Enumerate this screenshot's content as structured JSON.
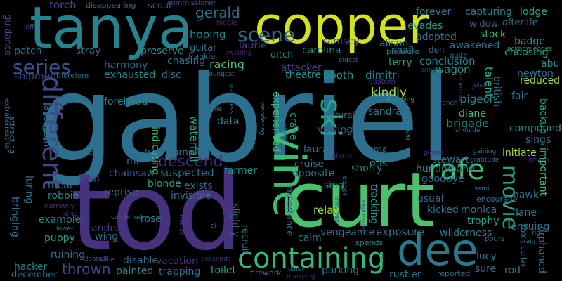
{
  "word_cloud": {
    "words": [
      {
        "text": "gabriel",
        "color": "#2d6f8e",
        "vertical": false
      },
      {
        "text": "tod",
        "color": "#46327e",
        "vertical": false
      },
      {
        "text": "curt",
        "color": "#4ac16d",
        "vertical": false
      },
      {
        "text": "tanya",
        "color": "#26828e",
        "vertical": false
      },
      {
        "text": "copper",
        "color": "#d2e21b",
        "vertical": false
      },
      {
        "text": "dee",
        "color": "#2a788e",
        "vertical": false
      },
      {
        "text": "vine",
        "color": "#3bbb75",
        "vertical": true
      },
      {
        "text": "containing",
        "color": "#35b779",
        "vertical": false
      },
      {
        "text": "rafe",
        "color": "#3dbc74",
        "vertical": false
      },
      {
        "text": "different",
        "color": "#3e4a89",
        "vertical": true
      },
      {
        "text": "ski",
        "color": "#22a884",
        "vertical": true
      },
      {
        "text": "series",
        "color": "#3b528b",
        "vertical": false
      },
      {
        "text": "scene",
        "color": "#31688e",
        "vertical": false
      },
      {
        "text": "movie",
        "color": "#1fa187",
        "vertical": true
      },
      {
        "text": "descend",
        "color": "#482878",
        "vertical": false
      },
      {
        "text": "thrown",
        "color": "#414487",
        "vertical": false
      },
      {
        "text": "gerald",
        "color": "#2c728e",
        "vertical": false
      },
      {
        "text": "brigade",
        "color": "#218f8d",
        "vertical": false
      },
      {
        "text": "torch",
        "color": "#3e4c8a",
        "vertical": false
      },
      {
        "text": "disappearing",
        "color": "#31688e",
        "vertical": false
      },
      {
        "text": "scout",
        "color": "#3b528b",
        "vertical": false
      },
      {
        "text": "commissioner",
        "color": "#3b528b",
        "vertical": false
      },
      {
        "text": "forever",
        "color": "#2c728e",
        "vertical": false
      },
      {
        "text": "capturing",
        "color": "#25848e",
        "vertical": false
      },
      {
        "text": "lodge",
        "color": "#21a685",
        "vertical": false
      },
      {
        "text": "guidance",
        "color": "#3e4a89",
        "vertical": true
      },
      {
        "text": "jeff",
        "color": "#3b528b",
        "vertical": false
      },
      {
        "text": "hoping",
        "color": "#25858e",
        "vertical": false
      },
      {
        "text": "nicole",
        "color": "#482878",
        "vertical": false
      },
      {
        "text": "evades",
        "color": "#1f9a8a",
        "vertical": false
      },
      {
        "text": "widow",
        "color": "#355f8d",
        "vertical": false
      },
      {
        "text": "afterlife",
        "color": "#2a788e",
        "vertical": false
      },
      {
        "text": "adopted",
        "color": "#2c728e",
        "vertical": false
      },
      {
        "text": "stock",
        "color": "#3aba76",
        "vertical": false
      },
      {
        "text": "acknowledges",
        "color": "#1f9e89",
        "vertical": false
      },
      {
        "text": "patch",
        "color": "#2d718e",
        "vertical": false
      },
      {
        "text": "stray",
        "color": "#2c728e",
        "vertical": false
      },
      {
        "text": "preserve",
        "color": "#1f968b",
        "vertical": false
      },
      {
        "text": "guitar",
        "color": "#2b758e",
        "vertical": false
      },
      {
        "text": "laurie",
        "color": "#443983",
        "vertical": false
      },
      {
        "text": "ramsey",
        "color": "#3b528b",
        "vertical": false
      },
      {
        "text": "pleasure",
        "color": "#2a788e",
        "vertical": false
      },
      {
        "text": "awakened",
        "color": "#2a788e",
        "vertical": false
      },
      {
        "text": "badge",
        "color": "#21918c",
        "vertical": false
      },
      {
        "text": "choosing",
        "color": "#21a685",
        "vertical": false
      },
      {
        "text": "harmony",
        "color": "#2e6e8e",
        "vertical": false
      },
      {
        "text": "chasing",
        "color": "#2b758e",
        "vertical": false
      },
      {
        "text": "frankie",
        "color": "#2c728e",
        "vertical": false
      },
      {
        "text": "awaiting",
        "color": "#482878",
        "vertical": false
      },
      {
        "text": "carolina",
        "color": "#26828e",
        "vertical": false
      },
      {
        "text": "alison",
        "color": "#29798e",
        "vertical": false
      },
      {
        "text": "den",
        "color": "#31688e",
        "vertical": false
      },
      {
        "text": "quite",
        "color": "#2b758e",
        "vertical": false
      },
      {
        "text": "extraterrestrial",
        "color": "#2e6e8e",
        "vertical": true
      },
      {
        "text": "shipment",
        "color": "#404688",
        "vertical": false
      },
      {
        "text": "exhausted",
        "color": "#25858e",
        "vertical": false
      },
      {
        "text": "disc",
        "color": "#2c728e",
        "vertical": false
      },
      {
        "text": "racing",
        "color": "#48c16e",
        "vertical": false
      },
      {
        "text": "youngest",
        "color": "#2a788e",
        "vertical": false
      },
      {
        "text": "ditch",
        "color": "#25848e",
        "vertical": false
      },
      {
        "text": "attacker",
        "color": "#453882",
        "vertical": false
      },
      {
        "text": "eldest",
        "color": "#31688e",
        "vertical": false
      },
      {
        "text": "shaft",
        "color": "#2c728e",
        "vertical": false
      },
      {
        "text": "terry",
        "color": "#1fa088",
        "vertical": false
      },
      {
        "text": "conclusion",
        "color": "#25848e",
        "vertical": false
      },
      {
        "text": "bring",
        "color": "#472d7b",
        "vertical": false
      },
      {
        "text": "wagon",
        "color": "#1f968b",
        "vertical": false
      },
      {
        "text": "talent",
        "color": "#29af7f",
        "vertical": true
      },
      {
        "text": "abu",
        "color": "#21918c",
        "vertical": false
      },
      {
        "text": "newton",
        "color": "#2c728e",
        "vertical": false
      },
      {
        "text": "reduced",
        "color": "#a5db36",
        "vertical": false
      },
      {
        "text": "therefore",
        "color": "#2c728e",
        "vertical": false
      },
      {
        "text": "theatre",
        "color": "#21918c",
        "vertical": false
      },
      {
        "text": "booth",
        "color": "#21918c",
        "vertical": false
      },
      {
        "text": "dimitri",
        "color": "#29798e",
        "vertical": false
      },
      {
        "text": "eastern",
        "color": "#46337e",
        "vertical": false
      },
      {
        "text": "rehearsal",
        "color": "#424086",
        "vertical": true
      },
      {
        "text": "joint",
        "color": "#3d4d8a",
        "vertical": false
      },
      {
        "text": "british",
        "color": "#2c728e",
        "vertical": true
      },
      {
        "text": "fair",
        "color": "#2f6b8e",
        "vertical": false
      },
      {
        "text": "forehead",
        "color": "#25858e",
        "vertical": false
      },
      {
        "text": "experienced",
        "color": "#3bbb75",
        "vertical": true
      },
      {
        "text": "crane",
        "color": "#1f978b",
        "vertical": true
      },
      {
        "text": "kindly",
        "color": "#a5db36",
        "vertical": false
      },
      {
        "text": "pigeon",
        "color": "#26828e",
        "vertical": false
      },
      {
        "text": "assassin",
        "color": "#2c728e",
        "vertical": true
      },
      {
        "text": "smile",
        "color": "#2d6f8e",
        "vertical": false
      },
      {
        "text": "weakness",
        "color": "#2e6e8e",
        "vertical": true
      },
      {
        "text": "dropping",
        "color": "#1f9e89",
        "vertical": false
      },
      {
        "text": "branch",
        "color": "#34618d",
        "vertical": false
      },
      {
        "text": "sandra",
        "color": "#26828e",
        "vertical": false
      },
      {
        "text": "diane",
        "color": "#3dbc74",
        "vertical": false
      },
      {
        "text": "backup",
        "color": "#1fa088",
        "vertical": true
      },
      {
        "text": "waterfall",
        "color": "#21a685",
        "vertical": true
      },
      {
        "text": "data",
        "color": "#25858e",
        "vertical": false
      },
      {
        "text": "natural",
        "color": "#2b758e",
        "vertical": false
      },
      {
        "text": "compound",
        "color": "#24868e",
        "vertical": false
      },
      {
        "text": "cigarette",
        "color": "#2a788e",
        "vertical": true
      },
      {
        "text": "wandering",
        "color": "#2c728e",
        "vertical": true
      },
      {
        "text": "knee",
        "color": "#2c728e",
        "vertical": true
      },
      {
        "text": "yellow",
        "color": "#277f8e",
        "vertical": true
      },
      {
        "text": "shoulder",
        "color": "#34618d",
        "vertical": false
      },
      {
        "text": "indicating",
        "color": "#37b878",
        "vertical": true
      },
      {
        "text": "vowing",
        "color": "#3b528b",
        "vertical": false
      },
      {
        "text": "sings",
        "color": "#2c728e",
        "vertical": false
      },
      {
        "text": "attracting",
        "color": "#2c728e",
        "vertical": true
      },
      {
        "text": "hat",
        "color": "#29798e",
        "vertical": false
      },
      {
        "text": "completed",
        "color": "#2a788e",
        "vertical": false
      },
      {
        "text": "laura",
        "color": "#2a788e",
        "vertical": false
      },
      {
        "text": "mama",
        "color": "#31688e",
        "vertical": false
      },
      {
        "text": "global",
        "color": "#482878",
        "vertical": false
      },
      {
        "text": "gaining",
        "color": "#2c728e",
        "vertical": false
      },
      {
        "text": "initiate",
        "color": "#a0da39",
        "vertical": false
      },
      {
        "text": "eugene",
        "color": "#2c728e",
        "vertical": false
      },
      {
        "text": "mill",
        "color": "#2e6e8e",
        "vertical": false
      },
      {
        "text": "glenn",
        "color": "#482878",
        "vertical": false
      },
      {
        "text": "stewart",
        "color": "#29798e",
        "vertical": false
      },
      {
        "text": "gratitude",
        "color": "#31688e",
        "vertical": false
      },
      {
        "text": "smash",
        "color": "#46327e",
        "vertical": false
      },
      {
        "text": "chainsaw",
        "color": "#3b528b",
        "vertical": false
      },
      {
        "text": "suspected",
        "color": "#2c728e",
        "vertical": false
      },
      {
        "text": "cruise",
        "color": "#2a788e",
        "vertical": false
      },
      {
        "text": "otis",
        "color": "#22a884",
        "vertical": false
      },
      {
        "text": "band",
        "color": "#2c728e",
        "vertical": false
      },
      {
        "text": "important",
        "color": "#3bbb75",
        "vertical": true
      },
      {
        "text": "joan",
        "color": "#3b528b",
        "vertical": false
      },
      {
        "text": "blonde",
        "color": "#1fa188",
        "vertical": false
      },
      {
        "text": "farmer",
        "color": "#1f978b",
        "vertical": false
      },
      {
        "text": "opposite",
        "color": "#2b758e",
        "vertical": false
      },
      {
        "text": "shorty",
        "color": "#25848e",
        "vertical": false
      },
      {
        "text": "hunting",
        "color": "#21918c",
        "vertical": false
      },
      {
        "text": "eager",
        "color": "#2c728e",
        "vertical": true
      },
      {
        "text": "meat",
        "color": "#2c728e",
        "vertical": false
      },
      {
        "text": "exists",
        "color": "#2f6b8e",
        "vertical": false
      },
      {
        "text": "sing",
        "color": "#1f968b",
        "vertical": false
      },
      {
        "text": "goodbye",
        "color": "#2e6e8e",
        "vertical": false
      },
      {
        "text": "semi",
        "color": "#2c728e",
        "vertical": false
      },
      {
        "text": "hawk",
        "color": "#2c728e",
        "vertical": false
      },
      {
        "text": "robbie",
        "color": "#25858e",
        "vertical": false
      },
      {
        "text": "tap",
        "color": "#482878",
        "vertical": false
      },
      {
        "text": "reprise",
        "color": "#2c728e",
        "vertical": false
      },
      {
        "text": "invisible",
        "color": "#2a788e",
        "vertical": false
      },
      {
        "text": "tracking",
        "color": "#21918c",
        "vertical": true
      },
      {
        "text": "importance",
        "color": "#2c728e",
        "vertical": true
      },
      {
        "text": "usual",
        "color": "#31688e",
        "vertical": false
      },
      {
        "text": "luring",
        "color": "#2c728e",
        "vertical": true
      },
      {
        "text": "narrowly",
        "color": "#46327e",
        "vertical": false
      },
      {
        "text": "involves",
        "color": "#3b528b",
        "vertical": true
      },
      {
        "text": "kicked",
        "color": "#2c728e",
        "vertical": false
      },
      {
        "text": "monica",
        "color": "#2c728e",
        "vertical": false
      },
      {
        "text": "lane",
        "color": "#2c728e",
        "vertical": false
      },
      {
        "text": "bringing",
        "color": "#2e6e8e",
        "vertical": true
      },
      {
        "text": "dirty",
        "color": "#482878",
        "vertical": false
      },
      {
        "text": "relay",
        "color": "#a0da39",
        "vertical": false
      },
      {
        "text": "expressing",
        "color": "#3b528b",
        "vertical": true
      },
      {
        "text": "encourage",
        "color": "#2c728e",
        "vertical": false
      },
      {
        "text": "trophy",
        "color": "#1fa088",
        "vertical": false
      },
      {
        "text": "example",
        "color": "#26828e",
        "vertical": false
      },
      {
        "text": "rose",
        "color": "#25848e",
        "vertical": false
      },
      {
        "text": "slightly",
        "color": "#2c728e",
        "vertical": true
      },
      {
        "text": "combined",
        "color": "#31688e",
        "vertical": false
      },
      {
        "text": "wilderness",
        "color": "#26828e",
        "vertical": false
      },
      {
        "text": "ensuing",
        "color": "#2c728e",
        "vertical": false
      },
      {
        "text": "andrew",
        "color": "#443983",
        "vertical": false
      },
      {
        "text": "lower",
        "color": "#2c728e",
        "vertical": false
      },
      {
        "text": "militia",
        "color": "#453882",
        "vertical": true
      },
      {
        "text": "el",
        "color": "#2c728e",
        "vertical": false
      },
      {
        "text": "vengeance",
        "color": "#2e6e8e",
        "vertical": false
      },
      {
        "text": "exposure",
        "color": "#2c728e",
        "vertical": false
      },
      {
        "text": "pours",
        "color": "#2c728e",
        "vertical": false
      },
      {
        "text": "puppy",
        "color": "#1fa088",
        "vertical": false
      },
      {
        "text": "wing",
        "color": "#2d718e",
        "vertical": false
      },
      {
        "text": "calm",
        "color": "#2a788e",
        "vertical": false
      },
      {
        "text": "fox",
        "color": "#2c728e",
        "vertical": true
      },
      {
        "text": "orphaned",
        "color": "#2c728e",
        "vertical": true
      },
      {
        "text": "recruit",
        "color": "#26828e",
        "vertical": true
      },
      {
        "text": "craig",
        "color": "#2c728e",
        "vertical": false
      },
      {
        "text": "collar",
        "color": "#2c728e",
        "vertical": true
      },
      {
        "text": "rig",
        "color": "#2c728e",
        "vertical": false
      },
      {
        "text": "ruining",
        "color": "#2d718e",
        "vertical": false
      },
      {
        "text": "disable",
        "color": "#31688e",
        "vertical": false
      },
      {
        "text": "spends",
        "color": "#26828e",
        "vertical": false
      },
      {
        "text": "lucy",
        "color": "#2c728e",
        "vertical": false
      },
      {
        "text": "hacker",
        "color": "#26828e",
        "vertical": false
      },
      {
        "text": "willie",
        "color": "#3e4a89",
        "vertical": false
      },
      {
        "text": "cleared",
        "color": "#3b528b",
        "vertical": false
      },
      {
        "text": "vacation",
        "color": "#443983",
        "vertical": false
      },
      {
        "text": "descends",
        "color": "#46327e",
        "vertical": false
      },
      {
        "text": "diner",
        "color": "#2c728e",
        "vertical": false
      },
      {
        "text": "rustler",
        "color": "#2c728e",
        "vertical": false
      },
      {
        "text": "sure",
        "color": "#2c728e",
        "vertical": false
      },
      {
        "text": "painted",
        "color": "#26828e",
        "vertical": false
      },
      {
        "text": "trapping",
        "color": "#2c728e",
        "vertical": false
      },
      {
        "text": "toilet",
        "color": "#22a884",
        "vertical": false
      },
      {
        "text": "parking",
        "color": "#2c728e",
        "vertical": false
      },
      {
        "text": "rod",
        "color": "#2c728e",
        "vertical": false
      },
      {
        "text": "december",
        "color": "#2e6e8e",
        "vertical": false
      },
      {
        "text": "firework",
        "color": "#2c728e",
        "vertical": false
      },
      {
        "text": "marrying",
        "color": "#482878",
        "vertical": false
      },
      {
        "text": "reported",
        "color": "#2c728e",
        "vertical": false
      }
    ]
  }
}
